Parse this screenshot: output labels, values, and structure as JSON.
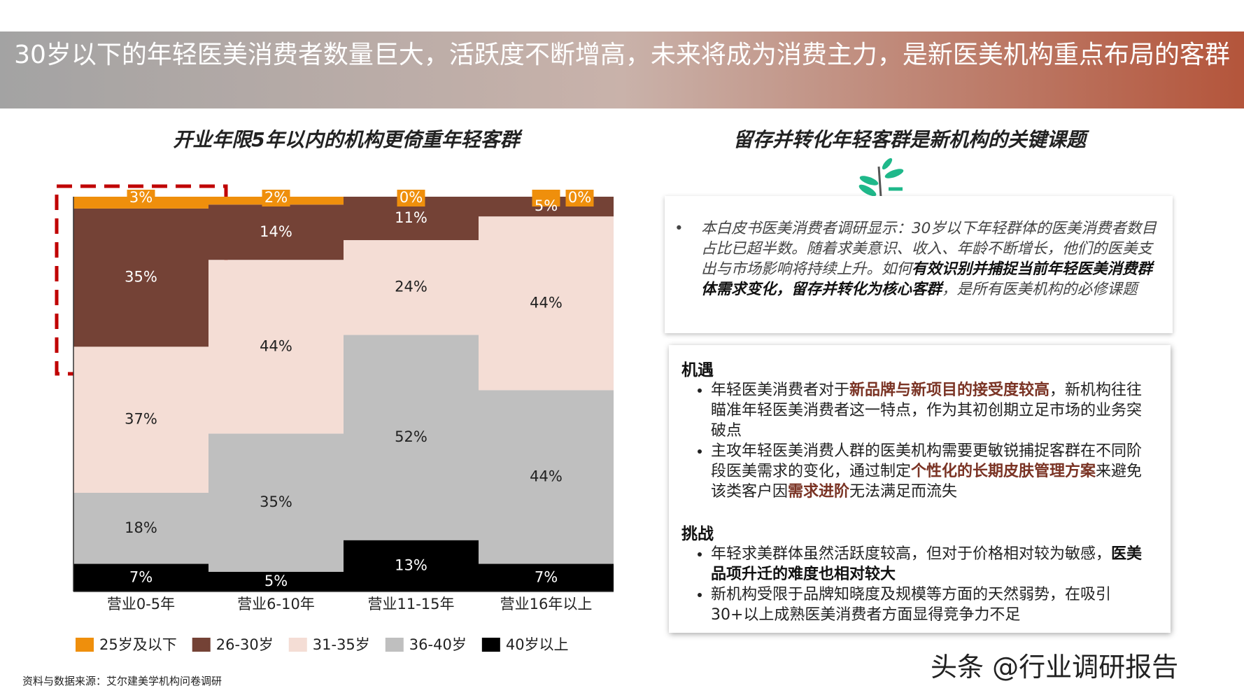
{
  "banner": "30岁以下的年轻医美消费者数量巨大，活跃度不断增高，未来将成为消费主力，是新医美机构重点布局的客群",
  "left_heading": "开业年限5年以内的机构更倚重年轻客群",
  "right_heading": "留存并转化年轻客群是新机构的关键课题",
  "chart_data": {
    "type": "stacked_bar",
    "categories": [
      "营业0-5年",
      "营业6-10年",
      "营业11-15年",
      "营业16年以上"
    ],
    "series": [
      {
        "name": "25岁及以下",
        "color": "#ef8f0c",
        "values": [
          3,
          2,
          0,
          0
        ],
        "value_labels": [
          "3%",
          "2%",
          "0%",
          "0%"
        ]
      },
      {
        "name": "26-30岁",
        "color": "#744236",
        "values": [
          35,
          14,
          11,
          5
        ],
        "value_labels": [
          "35%",
          "14%",
          "11%",
          "5%"
        ]
      },
      {
        "name": "31-35岁",
        "color": "#f4ddd5",
        "values": [
          37,
          44,
          24,
          44
        ],
        "value_labels": [
          "37%",
          "44%",
          "24%",
          "44%"
        ]
      },
      {
        "name": "36-40岁",
        "color": "#bfbfbf",
        "values": [
          18,
          35,
          52,
          44
        ],
        "value_labels": [
          "18%",
          "35%",
          "52%",
          "44%"
        ]
      },
      {
        "name": "40岁以上",
        "color": "#000000",
        "values": [
          7,
          5,
          13,
          7
        ],
        "value_labels": [
          "7%",
          "5%",
          "13%",
          "7%"
        ]
      }
    ]
  },
  "intro": [
    {
      "text": "本白皮书医美消费者调研显示：30岁以下年轻群体的医美消费者数目占比已超半数。随着求美意识、收入、年龄不断增长，他们的医美支出与市场影响将持续上升。如何"
    },
    {
      "text": "有效识别并捕捉当前年轻医美消费群体需求变化，留存并转化为核心客群",
      "style": "strong"
    },
    {
      "text": "，是所有医美机构的必修课题"
    }
  ],
  "sections": [
    {
      "title": "机遇",
      "bullets": [
        [
          {
            "text": "年轻医美消费者对于"
          },
          {
            "text": "新品牌与新项目的接受度较高",
            "style": "accent"
          },
          {
            "text": "，新机构往往瞄准年轻医美消费者这一特点，作为其初创期立足市场的业务突破点"
          }
        ],
        [
          {
            "text": "主攻年轻医美消费人群的医美机构需要更敏锐捕捉客群在不同阶段医美需求的变化，通过制定"
          },
          {
            "text": "个性化的长期皮肤管理方案",
            "style": "accent"
          },
          {
            "text": "来避免该类客户因"
          },
          {
            "text": "需求进阶",
            "style": "accent"
          },
          {
            "text": "无法满足而流失"
          }
        ]
      ]
    },
    {
      "title": "挑战",
      "bullets": [
        [
          {
            "text": "年轻求美群体虽然活跃度较高，但对于价格相对较为敏感，"
          },
          {
            "text": "医美品项升迁的难度也相对较大",
            "style": "strong"
          }
        ],
        [
          {
            "text": "新机构受限于品牌知晓度及规模等方面的天然弱势，在吸引30+以上成熟医美消费者方面显得竞争力不足"
          }
        ]
      ]
    }
  ],
  "source": "资料与数据来源：艾尔建美学机构问卷调研",
  "watermark": "头条 @行业调研报告"
}
